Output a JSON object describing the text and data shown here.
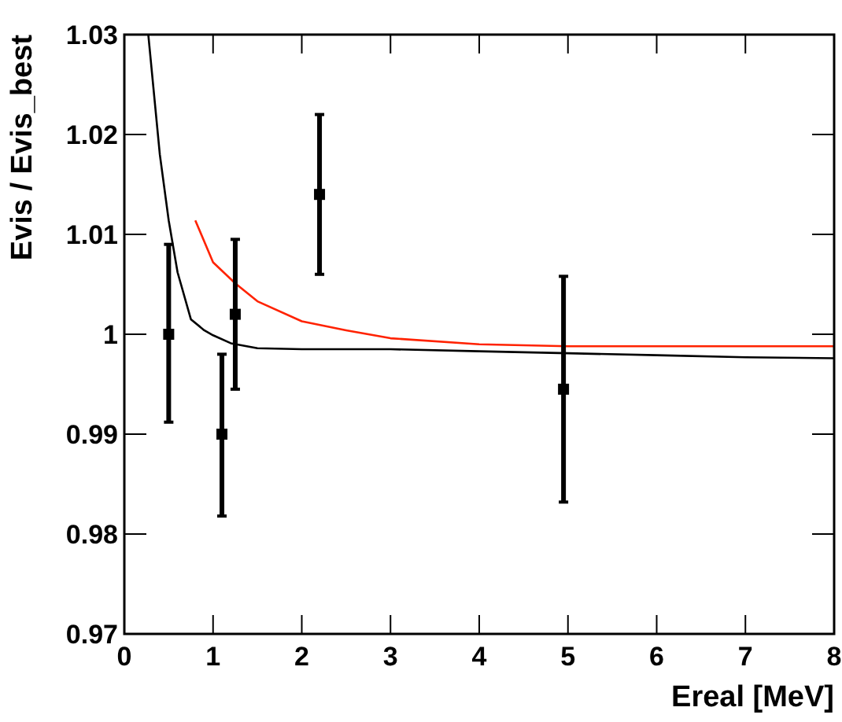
{
  "chart_data": {
    "type": "scatter",
    "xlabel": "Ereal [MeV]",
    "ylabel": "Evis / Evis_best",
    "xlim": [
      0,
      8
    ],
    "ylim": [
      0.97,
      1.03
    ],
    "xticks": [
      0,
      1,
      2,
      3,
      4,
      5,
      6,
      7,
      8
    ],
    "yticks": [
      0.97,
      0.98,
      0.99,
      {
        "value": 1,
        "label": "1"
      },
      1.01,
      1.02,
      1.03
    ],
    "grid": false,
    "series": [
      {
        "color": "#000000",
        "marker": "square",
        "x": [
          0.5,
          1.1,
          1.25,
          2.2,
          4.95
        ],
        "values": [
          1.0,
          0.99,
          1.002,
          1.014,
          0.9945
        ],
        "errors": [
          [
            0.9912,
            1.009
          ],
          [
            0.9818,
            0.998
          ],
          [
            0.9945,
            1.0095
          ],
          [
            1.006,
            1.022
          ],
          [
            0.9832,
            1.0058
          ]
        ]
      },
      {
        "type": "line",
        "color": "#000000",
        "x": [
          0.27,
          0.4,
          0.5,
          0.6,
          0.75,
          0.9,
          1.0,
          1.2,
          1.5,
          2,
          3,
          4,
          5,
          6,
          7,
          8
        ],
        "values": [
          1.03,
          1.018,
          1.0114,
          1.0062,
          1.0015,
          1.0004,
          0.9999,
          0.9991,
          0.9986,
          0.9985,
          0.9985,
          0.9983,
          0.9981,
          0.9979,
          0.9977,
          0.9976
        ]
      },
      {
        "type": "line",
        "color": "#ff2200",
        "x": [
          0.8,
          1.0,
          1.25,
          1.5,
          2,
          2.5,
          3,
          4,
          5,
          6,
          7,
          8
        ],
        "values": [
          1.0114,
          1.0072,
          1.0051,
          1.0033,
          1.0013,
          1.0004,
          0.9996,
          0.999,
          0.9988,
          0.9988,
          0.9988,
          0.9988
        ]
      }
    ]
  }
}
